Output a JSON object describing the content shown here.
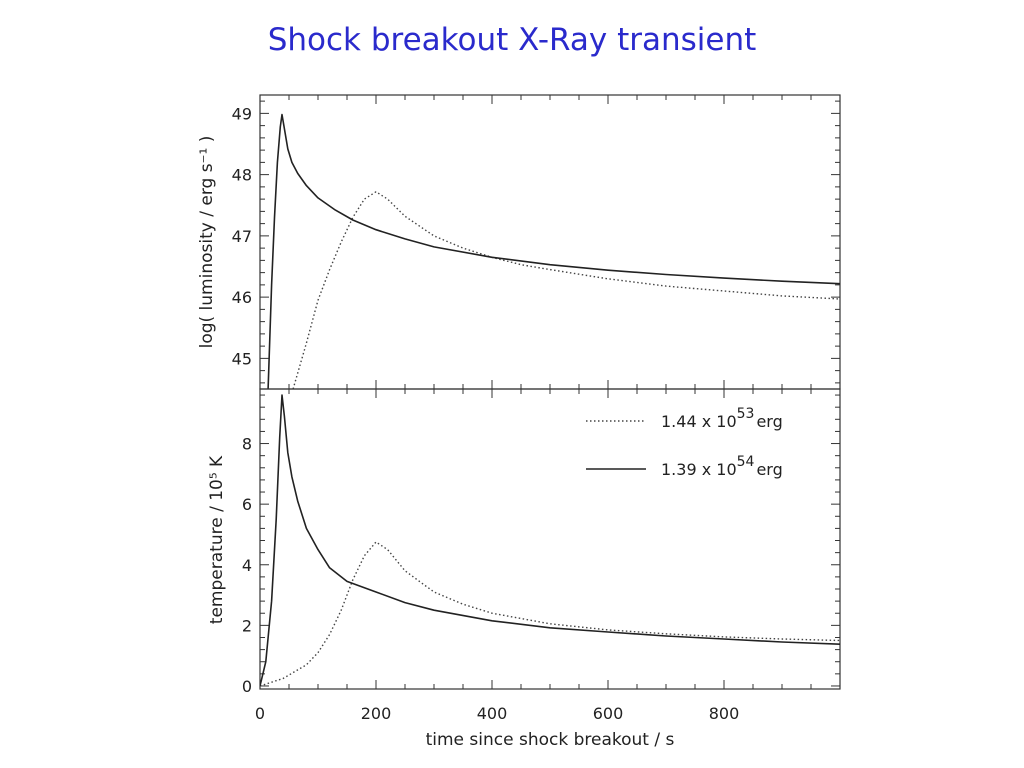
{
  "slide_title": "Shock breakout X-Ray transient",
  "chart_data": [
    {
      "type": "line",
      "ylabel": "log( luminosity / erg s⁻¹ )",
      "xlim": [
        0,
        1000
      ],
      "ylim": [
        44.5,
        49.3
      ],
      "yticks": [
        45,
        46,
        47,
        48,
        49
      ],
      "xticks": [
        0,
        200,
        400,
        600,
        800
      ],
      "series": [
        {
          "name": "1.44 x 10^53 erg",
          "style": "dotted",
          "x": [
            57,
            80,
            100,
            120,
            140,
            160,
            180,
            200,
            220,
            250,
            300,
            350,
            400,
            450,
            500,
            600,
            700,
            800,
            900,
            1000
          ],
          "y": [
            44.5,
            45.25,
            45.95,
            46.45,
            46.9,
            47.3,
            47.6,
            47.72,
            47.6,
            47.32,
            47.0,
            46.8,
            46.65,
            46.53,
            46.45,
            46.3,
            46.18,
            46.1,
            46.02,
            45.97
          ]
        },
        {
          "name": "1.39 x 10^54 erg",
          "style": "solid",
          "x": [
            14,
            20,
            25,
            30,
            35,
            38,
            42,
            48,
            55,
            65,
            80,
            100,
            130,
            160,
            200,
            250,
            300,
            400,
            500,
            600,
            700,
            800,
            900,
            1000
          ],
          "y": [
            44.5,
            46.2,
            47.3,
            48.2,
            48.78,
            48.98,
            48.75,
            48.42,
            48.2,
            48.02,
            47.82,
            47.62,
            47.42,
            47.26,
            47.1,
            46.95,
            46.82,
            46.65,
            46.53,
            46.44,
            46.37,
            46.31,
            46.26,
            46.22
          ]
        }
      ]
    },
    {
      "type": "line",
      "ylabel": "temperature / 10⁵ K",
      "xlabel": "time since shock breakout / s",
      "xlim": [
        0,
        1000
      ],
      "ylim": [
        -0.1,
        9.8
      ],
      "yticks": [
        0,
        2,
        4,
        6,
        8
      ],
      "xticks": [
        0,
        200,
        400,
        600,
        800
      ],
      "xtick_labels": [
        "0",
        "200",
        "400",
        "600",
        "800"
      ],
      "legend_position": "top-right",
      "series": [
        {
          "name": "1.44 x 10^53 erg",
          "legend_mantissa": "1.44 x 10",
          "legend_exp": "53",
          "legend_unit": "erg",
          "style": "dotted",
          "x": [
            0,
            40,
            80,
            100,
            120,
            140,
            160,
            180,
            200,
            220,
            250,
            300,
            350,
            400,
            500,
            600,
            700,
            800,
            900,
            1000
          ],
          "y": [
            0.0,
            0.25,
            0.7,
            1.1,
            1.7,
            2.5,
            3.5,
            4.3,
            4.75,
            4.5,
            3.8,
            3.1,
            2.7,
            2.4,
            2.05,
            1.85,
            1.72,
            1.62,
            1.55,
            1.5
          ]
        },
        {
          "name": "1.39 x 10^54 erg",
          "legend_mantissa": "1.39 x 10",
          "legend_exp": "54",
          "legend_unit": "erg",
          "style": "solid",
          "x": [
            0,
            10,
            20,
            28,
            34,
            38,
            42,
            48,
            55,
            65,
            80,
            100,
            120,
            150,
            200,
            250,
            300,
            400,
            500,
            600,
            700,
            800,
            900,
            1000
          ],
          "y": [
            0.0,
            0.8,
            2.8,
            5.5,
            8.2,
            9.6,
            8.9,
            7.7,
            6.9,
            6.1,
            5.2,
            4.5,
            3.9,
            3.45,
            3.1,
            2.75,
            2.5,
            2.15,
            1.92,
            1.78,
            1.65,
            1.55,
            1.45,
            1.38
          ]
        }
      ]
    }
  ]
}
